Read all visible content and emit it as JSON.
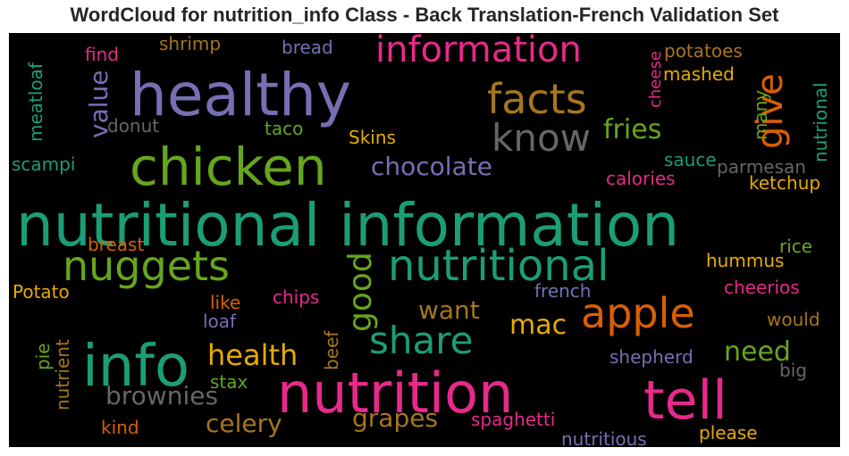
{
  "title": "WordCloud for nutrition_info Class - Back Translation-French Validation Set",
  "palette": {
    "teal": "#1b9e77",
    "orange": "#d95f02",
    "purple": "#7570b3",
    "pink": "#e7298a",
    "green": "#66a61e",
    "yellow": "#e6ab02",
    "brown": "#a6761d",
    "gray": "#666666",
    "background": "#000000"
  },
  "words": [
    {
      "text": "nutritional information",
      "color": "#1b9e77"
    },
    {
      "text": "healthy",
      "color": "#7570b3"
    },
    {
      "text": "chicken",
      "color": "#66a61e"
    },
    {
      "text": "nutrition",
      "color": "#e7298a"
    },
    {
      "text": "info",
      "color": "#1b9e77"
    },
    {
      "text": "tell",
      "color": "#e7298a"
    },
    {
      "text": "nutritional",
      "color": "#1b9e77"
    },
    {
      "text": "nuggets",
      "color": "#66a61e"
    },
    {
      "text": "information",
      "color": "#e7298a"
    },
    {
      "text": "facts",
      "color": "#a6761d"
    },
    {
      "text": "know",
      "color": "#666666"
    },
    {
      "text": "apple",
      "color": "#d95f02"
    },
    {
      "text": "share",
      "color": "#1b9e77"
    },
    {
      "text": "give",
      "color": "#d95f02"
    },
    {
      "text": "good",
      "color": "#66a61e"
    },
    {
      "text": "value",
      "color": "#7570b3"
    },
    {
      "text": "chocolate",
      "color": "#7570b3"
    },
    {
      "text": "fries",
      "color": "#66a61e"
    },
    {
      "text": "health",
      "color": "#e6ab02"
    },
    {
      "text": "brownies",
      "color": "#666666"
    },
    {
      "text": "celery",
      "color": "#a6761d"
    },
    {
      "text": "grapes",
      "color": "#a6761d"
    },
    {
      "text": "want",
      "color": "#a6761d"
    },
    {
      "text": "mac",
      "color": "#e6ab02"
    },
    {
      "text": "need",
      "color": "#66a61e"
    },
    {
      "text": "shrimp",
      "color": "#a6761d"
    },
    {
      "text": "bread",
      "color": "#7570b3"
    },
    {
      "text": "find",
      "color": "#e7298a"
    },
    {
      "text": "meatloaf",
      "color": "#1b9e77"
    },
    {
      "text": "donut",
      "color": "#666666"
    },
    {
      "text": "taco",
      "color": "#66a61e"
    },
    {
      "text": "Skins",
      "color": "#e6ab02"
    },
    {
      "text": "scampi",
      "color": "#1b9e77"
    },
    {
      "text": "cheese",
      "color": "#e7298a"
    },
    {
      "text": "potatoes",
      "color": "#a6761d"
    },
    {
      "text": "mashed",
      "color": "#e6ab02"
    },
    {
      "text": "many",
      "color": "#66a61e"
    },
    {
      "text": "nutrional",
      "color": "#1b9e77"
    },
    {
      "text": "sauce",
      "color": "#1b9e77"
    },
    {
      "text": "calories",
      "color": "#e7298a"
    },
    {
      "text": "parmesan",
      "color": "#666666"
    },
    {
      "text": "ketchup",
      "color": "#e6ab02"
    },
    {
      "text": "breast",
      "color": "#d95f02"
    },
    {
      "text": "rice",
      "color": "#66a61e"
    },
    {
      "text": "hummus",
      "color": "#e6ab02"
    },
    {
      "text": "Potato",
      "color": "#e6ab02"
    },
    {
      "text": "like",
      "color": "#d95f02"
    },
    {
      "text": "chips",
      "color": "#e7298a"
    },
    {
      "text": "french",
      "color": "#7570b3"
    },
    {
      "text": "cheerios",
      "color": "#e7298a"
    },
    {
      "text": "loaf",
      "color": "#7570b3"
    },
    {
      "text": "would",
      "color": "#a6761d"
    },
    {
      "text": "pie",
      "color": "#66a61e"
    },
    {
      "text": "nutrient",
      "color": "#a6761d"
    },
    {
      "text": "beef",
      "color": "#a6761d"
    },
    {
      "text": "shepherd",
      "color": "#7570b3"
    },
    {
      "text": "big",
      "color": "#666666"
    },
    {
      "text": "stax",
      "color": "#66a61e"
    },
    {
      "text": "kind",
      "color": "#d95f02"
    },
    {
      "text": "spaghetti",
      "color": "#e7298a"
    },
    {
      "text": "please",
      "color": "#e6ab02"
    },
    {
      "text": "nutritious",
      "color": "#7570b3"
    }
  ]
}
